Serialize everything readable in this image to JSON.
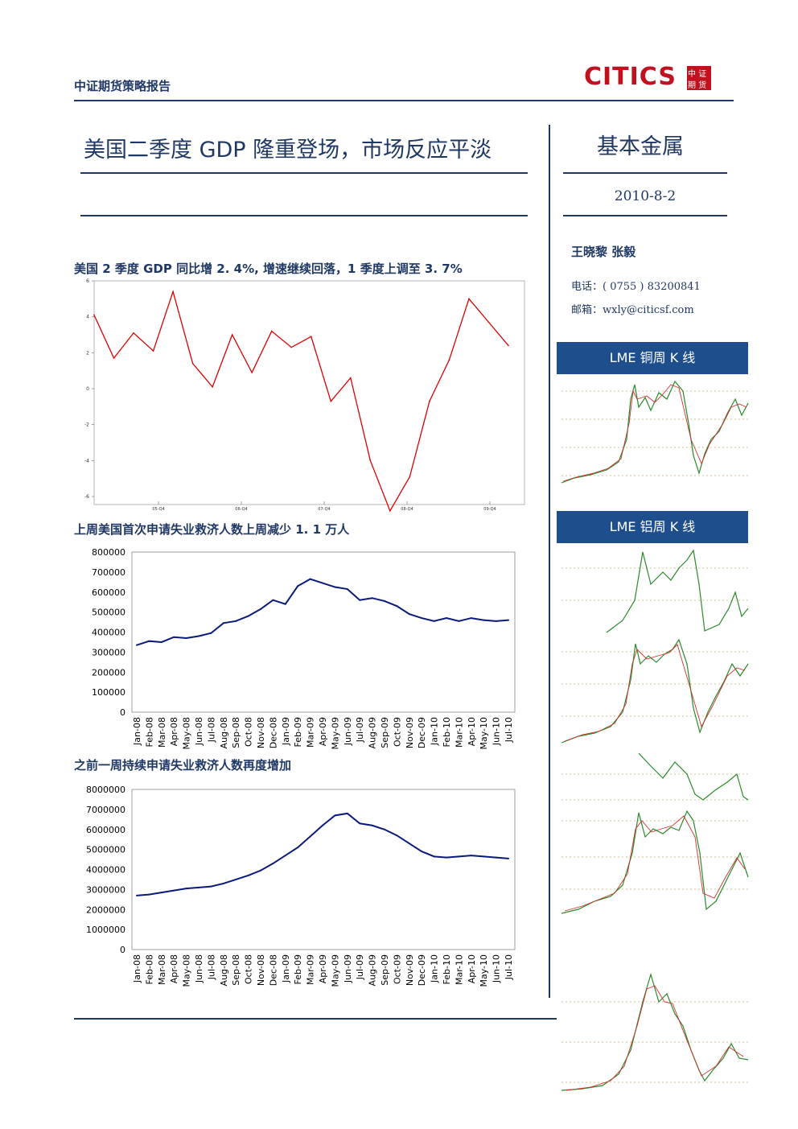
{
  "header": {
    "title": "中证期货策略报告",
    "logo_text": "CITICS",
    "logo_cn_top": "中 证",
    "logo_cn_bottom": "期 货"
  },
  "report": {
    "title": "美国二季度 GDP 隆重登场，市场反应平淡",
    "section": "基本金属",
    "date": "2010-8-2"
  },
  "author": {
    "names": "王晓黎  张毅",
    "phone": "电话：( 0755 )   83200841",
    "email": "邮箱：wxly@citicsf.com"
  },
  "sidebar": {
    "box1": "LME 铜周 K 线",
    "box2": "LME 铝周 K 线"
  },
  "chart_data": [
    {
      "type": "line",
      "title": "美国 2 季度 GDP 同比增 2. 4%, 增速继续回落，1 季度上调至 3. 7%",
      "ylim": [
        -6,
        6
      ],
      "yticks": [
        "6",
        "4",
        "2",
        "0",
        "-2",
        "-4",
        "-6"
      ],
      "xticks": [
        "05-Q4",
        "06-Q4",
        "07-Q4",
        "08-Q4",
        "09-Q4"
      ],
      "color": "#e00000",
      "values": [
        4.1,
        1.7,
        3.1,
        2.1,
        5.4,
        1.4,
        0.1,
        3.0,
        0.9,
        3.2,
        2.3,
        2.9,
        -0.7,
        0.6,
        -4.0,
        -6.8,
        -4.9,
        -0.7,
        1.6,
        5.0,
        3.7,
        2.4
      ]
    },
    {
      "type": "line",
      "title": "上周美国首次申请失业救济人数上周减少 1. 1 万人",
      "ylim": [
        0,
        800000
      ],
      "yticks": [
        "800000",
        "700000",
        "600000",
        "500000",
        "400000",
        "300000",
        "200000",
        "100000",
        "0"
      ],
      "categories": [
        "Jan-08",
        "Feb-08",
        "Mar-08",
        "Apr-08",
        "May-08",
        "Jun-08",
        "Jul-08",
        "Aug-08",
        "Sep-08",
        "Oct-08",
        "Nov-08",
        "Dec-08",
        "Jan-09",
        "Feb-09",
        "Mar-09",
        "Apr-09",
        "May-09",
        "Jun-09",
        "Jul-09",
        "Aug-09",
        "Sep-09",
        "Oct-09",
        "Nov-09",
        "Dec-09",
        "Jan-10",
        "Feb-10",
        "Mar-10",
        "Apr-10",
        "May-10",
        "Jun-10",
        "Jul-10"
      ],
      "color": "#0a1a7a",
      "values": [
        335000,
        355000,
        350000,
        375000,
        370000,
        380000,
        395000,
        445000,
        455000,
        480000,
        515000,
        560000,
        540000,
        630000,
        665000,
        645000,
        625000,
        615000,
        560000,
        570000,
        555000,
        530000,
        490000,
        470000,
        455000,
        470000,
        455000,
        470000,
        460000,
        455000,
        460000
      ]
    },
    {
      "type": "line",
      "title": "之前一周持续申请失业救济人数再度增加",
      "ylim": [
        0,
        8000000
      ],
      "yticks": [
        "8000000",
        "7000000",
        "6000000",
        "5000000",
        "4000000",
        "3000000",
        "2000000",
        "1000000",
        "0"
      ],
      "categories": [
        "Jan-08",
        "Feb-08",
        "Mar-08",
        "Apr-08",
        "May-08",
        "Jun-08",
        "Jul-08",
        "Aug-08",
        "Sep-08",
        "Oct-08",
        "Nov-08",
        "Dec-08",
        "Jan-09",
        "Feb-09",
        "Mar-09",
        "Apr-09",
        "May-09",
        "Jun-09",
        "Jul-09",
        "Aug-09",
        "Sep-09",
        "Oct-09",
        "Nov-09",
        "Dec-09",
        "Jan-10",
        "Feb-10",
        "Mar-10",
        "Apr-10",
        "May-10",
        "Jun-10",
        "Jul-10"
      ],
      "color": "#0a1a7a",
      "values": [
        2700000,
        2750000,
        2850000,
        2950000,
        3050000,
        3100000,
        3150000,
        3300000,
        3500000,
        3700000,
        3950000,
        4300000,
        4700000,
        5100000,
        5650000,
        6200000,
        6700000,
        6800000,
        6300000,
        6200000,
        6000000,
        5700000,
        5300000,
        4900000,
        4650000,
        4600000,
        4650000,
        4700000,
        4650000,
        4600000,
        4550000
      ]
    }
  ]
}
